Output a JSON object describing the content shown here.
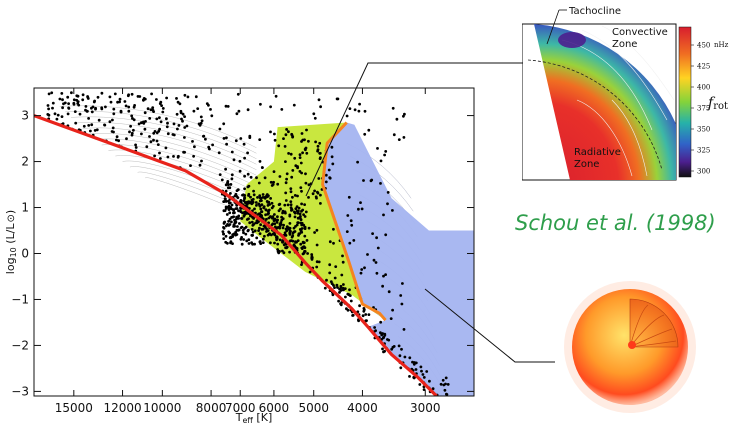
{
  "chart_data": {
    "type": "scatter",
    "title": "",
    "xlabel": "T",
    "xlabel_sub": "eff",
    "xlabel_unit": " [K]",
    "ylabel": "log",
    "ylabel_sub": "10",
    "ylabel_rest": " (L/L",
    "ylabel_close": ")",
    "x_scale": "log",
    "x_reversed": true,
    "xlim": [
      18000,
      2400
    ],
    "ylim": [
      -3.1,
      3.6
    ],
    "x_ticks": [
      15000,
      12000,
      10000,
      8000,
      7000,
      6000,
      5000,
      4000,
      3000
    ],
    "x_tick_labels": [
      "15000",
      "12000",
      "10000",
      "8000",
      "7000",
      "6000",
      "5000",
      "4000",
      "3000"
    ],
    "y_ticks": [
      3,
      2,
      1,
      0,
      -1,
      -2,
      -3
    ],
    "y_tick_labels": [
      "3",
      "2",
      "1",
      "0",
      "−1",
      "−2",
      "−3"
    ],
    "zams_line": {
      "color": "#e8231b",
      "points": [
        [
          18000,
          3.0
        ],
        [
          12000,
          2.3
        ],
        [
          9000,
          1.8
        ],
        [
          7500,
          1.3
        ],
        [
          6500,
          0.8
        ],
        [
          5800,
          0.4
        ],
        [
          5200,
          -0.2
        ],
        [
          4800,
          -0.6
        ],
        [
          4200,
          -1.2
        ],
        [
          3900,
          -1.6
        ],
        [
          3500,
          -2.2
        ],
        [
          3100,
          -2.7
        ],
        [
          2850,
          -3.1
        ]
      ]
    },
    "instability_region": {
      "color": "#c6e635",
      "polygon": [
        [
          5900,
          2.75
        ],
        [
          4300,
          2.85
        ],
        [
          4700,
          2.4
        ],
        [
          4800,
          1.5
        ],
        [
          4500,
          0.6
        ],
        [
          4250,
          -0.2
        ],
        [
          4000,
          -1.1
        ],
        [
          3600,
          -1.45
        ],
        [
          4200,
          -0.9
        ],
        [
          5200,
          -0.4
        ],
        [
          6300,
          0.3
        ],
        [
          7000,
          0.7
        ],
        [
          6800,
          1.5
        ],
        [
          6000,
          2.0
        ],
        [
          5900,
          2.75
        ]
      ]
    },
    "boundary_line": {
      "color": "#f5841f",
      "points": [
        [
          4300,
          2.85
        ],
        [
          4700,
          2.4
        ],
        [
          4800,
          1.5
        ],
        [
          4500,
          0.6
        ],
        [
          4250,
          -0.2
        ],
        [
          4000,
          -1.1
        ],
        [
          3700,
          -1.3
        ],
        [
          3600,
          -1.45
        ]
      ]
    },
    "convective_region": {
      "color": "#a4b4f0",
      "polygon": [
        [
          4300,
          2.85
        ],
        [
          4150,
          2.8
        ],
        [
          3500,
          1.2
        ],
        [
          2950,
          0.5
        ],
        [
          2400,
          0.5
        ],
        [
          2400,
          -3.1
        ],
        [
          2850,
          -3.1
        ],
        [
          3100,
          -2.7
        ],
        [
          3500,
          -2.2
        ],
        [
          3900,
          -1.6
        ],
        [
          3600,
          -1.45
        ],
        [
          4000,
          -1.1
        ],
        [
          4250,
          -0.2
        ],
        [
          4500,
          0.6
        ],
        [
          4800,
          1.5
        ],
        [
          4700,
          2.4
        ],
        [
          4300,
          2.85
        ]
      ]
    },
    "point_color": "#000000"
  },
  "inset": {
    "labels": {
      "tachocline": "Tachocline",
      "convective_1": "Convective",
      "convective_2": "Zone",
      "radiative_1": "Radiative",
      "radiative_2": "Zone"
    },
    "colorbar": {
      "ticks": [
        "450",
        "425",
        "400",
        "375",
        "350",
        "325",
        "300"
      ],
      "unit": "nHz",
      "colors": [
        "#d81e2e",
        "#f06e22",
        "#ffd322",
        "#84d33a",
        "#26b2a9",
        "#3063c8",
        "#4c1f8e",
        "#111111"
      ],
      "label_main": "f",
      "label_sub": "rot"
    }
  },
  "citation": "Schou et al. (1998)"
}
